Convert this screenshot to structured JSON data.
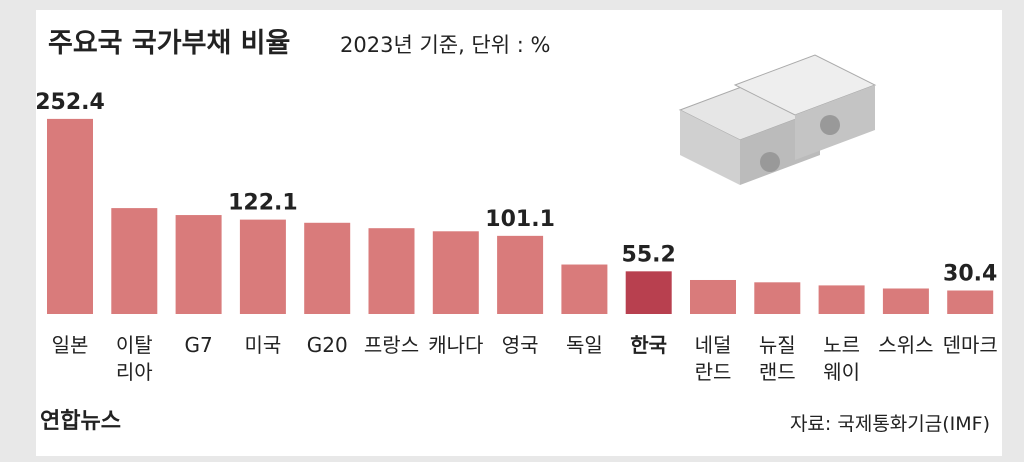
{
  "chart_data": {
    "type": "bar",
    "title": "주요국 국가부채 비율",
    "subtitle": "2023년 기준, 단위 : %",
    "source": "자료: 국제통화기금(IMF)",
    "logo": "연합뉴스",
    "categories": [
      "일본",
      "이탈리아",
      "G7",
      "미국",
      "G20",
      "프랑스",
      "캐나다",
      "영국",
      "독일",
      "한국",
      "네덜란드",
      "뉴질랜드",
      "노르웨이",
      "스위스",
      "덴마크"
    ],
    "values": [
      252.4,
      137,
      128,
      122.1,
      118,
      111,
      107,
      101.1,
      64,
      55.2,
      44,
      41,
      37,
      33,
      30.4
    ],
    "value_labels": [
      "252.4",
      null,
      null,
      "122.1",
      null,
      null,
      null,
      "101.1",
      null,
      "55.2",
      null,
      null,
      null,
      null,
      "30.4"
    ],
    "colors": [
      "#d97b7b",
      "#d97b7b",
      "#d97b7b",
      "#d97b7b",
      "#d97b7b",
      "#d97b7b",
      "#d97b7b",
      "#d97b7b",
      "#d97b7b",
      "#b8404f",
      "#d97b7b",
      "#d97b7b",
      "#d97b7b",
      "#d97b7b",
      "#d97b7b"
    ]
  }
}
